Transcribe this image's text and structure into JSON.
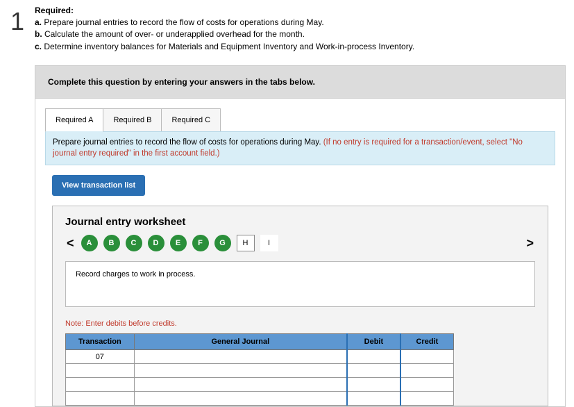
{
  "question_number": "1",
  "required_heading": "Required:",
  "required_items": [
    {
      "letter": "a.",
      "text": "Prepare journal entries to record the flow of costs for operations during May."
    },
    {
      "letter": "b.",
      "text": "Calculate the amount of over- or underapplied overhead for the month."
    },
    {
      "letter": "c.",
      "text": "Determine inventory balances for Materials and Equipment Inventory and Work-in-process Inventory."
    }
  ],
  "panel_instruction": "Complete this question by entering your answers in the tabs below.",
  "tabs": [
    {
      "label": "Required A",
      "active": true
    },
    {
      "label": "Required B",
      "active": false
    },
    {
      "label": "Required C",
      "active": false
    }
  ],
  "tab_instruction_black": "Prepare journal entries to record the flow of costs for operations during May. ",
  "tab_instruction_red": "(If no entry is required for a transaction/event, select \"No journal entry required\" in the first account field.)",
  "view_button": "View transaction list",
  "worksheet_title": "Journal entry worksheet",
  "pager": {
    "prev_glyph": "<",
    "next_glyph": ">",
    "done": [
      "A",
      "B",
      "C",
      "D",
      "E",
      "F",
      "G"
    ],
    "current": "H",
    "pending": [
      "I"
    ]
  },
  "entry_description": "Record charges to work in process.",
  "note": "Note: Enter debits before credits.",
  "table": {
    "headers": [
      "Transaction",
      "General Journal",
      "Debit",
      "Credit"
    ],
    "col_widths": [
      "90px",
      "280px",
      "70px",
      "70px"
    ],
    "transaction_no": "07",
    "blank_rows": 3
  }
}
